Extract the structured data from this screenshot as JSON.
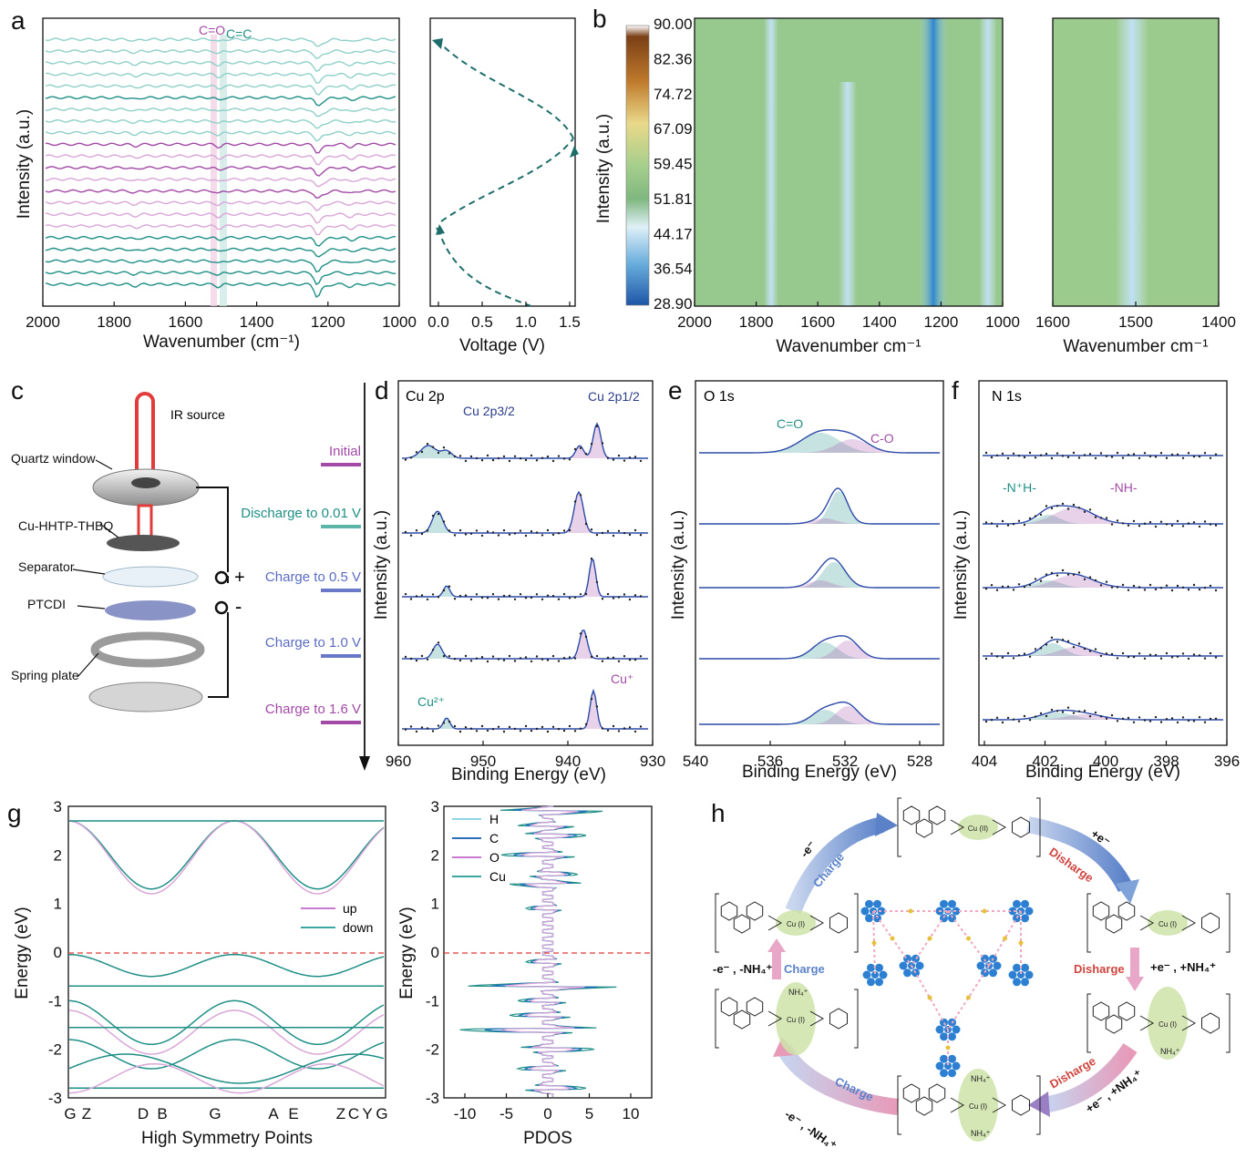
{
  "panel_letters": [
    "a",
    "b",
    "c",
    "d",
    "e",
    "f",
    "g",
    "h"
  ],
  "colors": {
    "teal": "#1f8f86",
    "light_teal": "#8fd0c8",
    "purple": "#a24aa6",
    "light_purple": "#d9a6d8",
    "blue_label": "#5b6bc2",
    "green_fill": "#8fc58f",
    "heatmap_low": "#1f6fb8",
    "heatmap_high": "#7a3f16"
  },
  "panel_a": {
    "ylabel": "Intensity (a.u.)",
    "xlabel": "Wavenumber (cm⁻¹)",
    "xticks": [
      "2000",
      "1800",
      "1600",
      "1400",
      "1200",
      "1000"
    ],
    "band_labels": [
      "C=O",
      "C=C"
    ],
    "voltage_xlabel": "Voltage (V)",
    "voltage_xticks": [
      "0.0",
      "0.5",
      "1.0",
      "1.5"
    ]
  },
  "panel_b": {
    "ylabel": "Intensity (a.u.)",
    "colorbar_ticks": [
      "90.00",
      "82.36",
      "74.72",
      "67.09",
      "59.45",
      "51.81",
      "44.17",
      "36.54",
      "28.90"
    ],
    "xlabel": "Wavenumber cm⁻¹",
    "xticks_left": [
      "2000",
      "1800",
      "1600",
      "1400",
      "1200",
      "1000"
    ],
    "xticks_right": [
      "1600",
      "1500",
      "1400"
    ]
  },
  "panel_c": {
    "ir_source": "IR source",
    "components": [
      "Quartz window",
      "Cu-HHTP-THBQ",
      "Separator",
      "PTCDI",
      "Spring plate"
    ],
    "plus": "+",
    "minus": "-",
    "states": [
      "Initial",
      "Discharge to 0.01 V",
      "Charge to 0.5 V",
      "Charge to 1.0 V",
      "Charge to 1.6 V"
    ]
  },
  "panel_d": {
    "title": "Cu 2p",
    "peak_32": "Cu 2p3/2",
    "peak_12": "Cu 2p1/2",
    "cu2": "Cu²⁺",
    "cu1": "Cu⁺",
    "ylabel": "Intensity (a.u.)",
    "xlabel": "Binding Energy (eV)",
    "xticks": [
      "960",
      "950",
      "940",
      "930"
    ]
  },
  "panel_e": {
    "title": "O 1s",
    "co_double": "C=O",
    "co_single": "C-O",
    "ylabel": "Intensity (a.u.)",
    "xlabel": "Binding Energy (eV)",
    "xticks": [
      "540",
      "536",
      "532",
      "528"
    ]
  },
  "panel_f": {
    "title": "N 1s",
    "nh_plus": "-N⁺H-",
    "nh": "-NH-",
    "ylabel": "Intensity (a.u.)",
    "xlabel": "Binding Energy (eV)",
    "xticks": [
      "404",
      "402",
      "400",
      "398",
      "396"
    ]
  },
  "panel_g": {
    "ylabel": "Energy (eV)",
    "yticks": [
      "3",
      "2",
      "1",
      "0",
      "-1",
      "-2",
      "-3"
    ],
    "xlabel": "High Symmetry Points",
    "kpoints": [
      "G",
      "Z",
      "D",
      "B",
      "G",
      "A",
      "E",
      "Z",
      "C",
      "Y",
      "G"
    ],
    "legend": [
      "up",
      "down"
    ],
    "pdos_ylabel": "Energy (eV)",
    "pdos_xlabel": "PDOS",
    "pdos_xticks": [
      "-10",
      "-5",
      "0",
      "5",
      "10"
    ],
    "pdos_legend": [
      "H",
      "C",
      "O",
      "Cu"
    ]
  },
  "panel_h": {
    "charge": "Charge",
    "disharge": "Disharge",
    "e_minus": "-e⁻",
    "e_plus": "+e⁻",
    "e_minus_nh4": "-e⁻ , -NH₄⁺",
    "e_plus_nh4": "+e⁻ , +NH₄⁺",
    "cu_ii": "Cu (II)",
    "cu_i": "Cu (I)",
    "nh4": "NH₄⁺"
  }
}
